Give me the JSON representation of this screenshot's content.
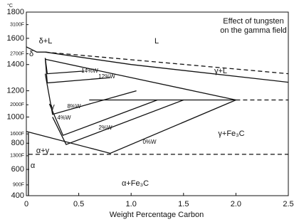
{
  "chart_data": {
    "type": "line",
    "title": [
      "Effect of tungsten",
      "on the gamma field"
    ],
    "x_label": "Weight Percentage Carbon",
    "y_label": "°C",
    "xlim": [
      0,
      2.5
    ],
    "xticks": [
      0,
      0.5,
      {
        "value": 1,
        "label": "1.0"
      },
      1.5,
      {
        "value": 2,
        "label": "2.0"
      },
      2.5
    ],
    "ylim": [
      400,
      1800
    ],
    "yticks": [
      400,
      600,
      800,
      1000,
      1200,
      1400,
      1600,
      1800
    ],
    "y2lim": [
      752,
      3272
    ],
    "y2ticks": [
      {
        "value": 900,
        "label": "900F"
      },
      {
        "value": 1300,
        "label": "1300F"
      },
      {
        "value": 1600,
        "label": "1600F"
      },
      {
        "value": 2000,
        "label": "2000F"
      },
      {
        "value": 2700,
        "label": "2700F"
      },
      {
        "value": 3100,
        "label": "3100F"
      }
    ],
    "color": "#111111",
    "annotations": [
      "L",
      "δ+L",
      "δ",
      "γ+L",
      "γ",
      "γ+Fe₃C",
      "α+γ",
      "α",
      "α+Fe₃C"
    ],
    "series": [
      {
        "x": [
          0.18,
          2.5
        ],
        "y": [
          1495,
          1330
        ],
        "dash": true
      },
      {
        "x": [
          0.18,
          1.0,
          2.5
        ],
        "y": [
          1495,
          1400,
          1265
        ]
      },
      {
        "x": [
          0.18,
          2.0
        ],
        "y": [
          1440,
          1130
        ]
      },
      {
        "x": [
          0.6,
          2.0
        ],
        "y": [
          1130,
          1130
        ]
      },
      {
        "x": [
          2.0,
          2.5
        ],
        "y": [
          1130,
          1130
        ],
        "dash": true
      },
      {
        "x": [
          0.02,
          2.5
        ],
        "y": [
          715,
          715
        ],
        "dash": true
      },
      {
        "x": [
          0,
          0.1,
          0.18
        ],
        "y": [
          1535,
          1495,
          1495
        ]
      },
      {
        "x": [
          0.02,
          0.02
        ],
        "y": [
          880,
          400
        ]
      },
      {
        "name": "0%W",
        "x": [
          0,
          0.8,
          2.0
        ],
        "y": [
          890,
          723,
          1130
        ]
      },
      {
        "name": "2%W",
        "x": [
          0.25,
          0.38,
          1.5
        ],
        "y": [
          1000,
          790,
          1130
        ]
      },
      {
        "name": "4%W",
        "x": [
          0.22,
          0.35,
          1.25
        ],
        "y": [
          1100,
          860,
          1130
        ]
      },
      {
        "name": "8%W",
        "x": [
          0.18,
          0.25,
          1.05
        ],
        "y": [
          1330,
          1020,
          1200
        ]
      },
      {
        "name": "12%W",
        "x": [
          0.18,
          0.2,
          0.8
        ],
        "y": [
          1450,
          1260,
          1300
        ]
      },
      {
        "name": "14%W",
        "x": [
          0.18,
          0.2,
          0.55
        ],
        "y": [
          1450,
          1330,
          1350
        ]
      }
    ]
  }
}
